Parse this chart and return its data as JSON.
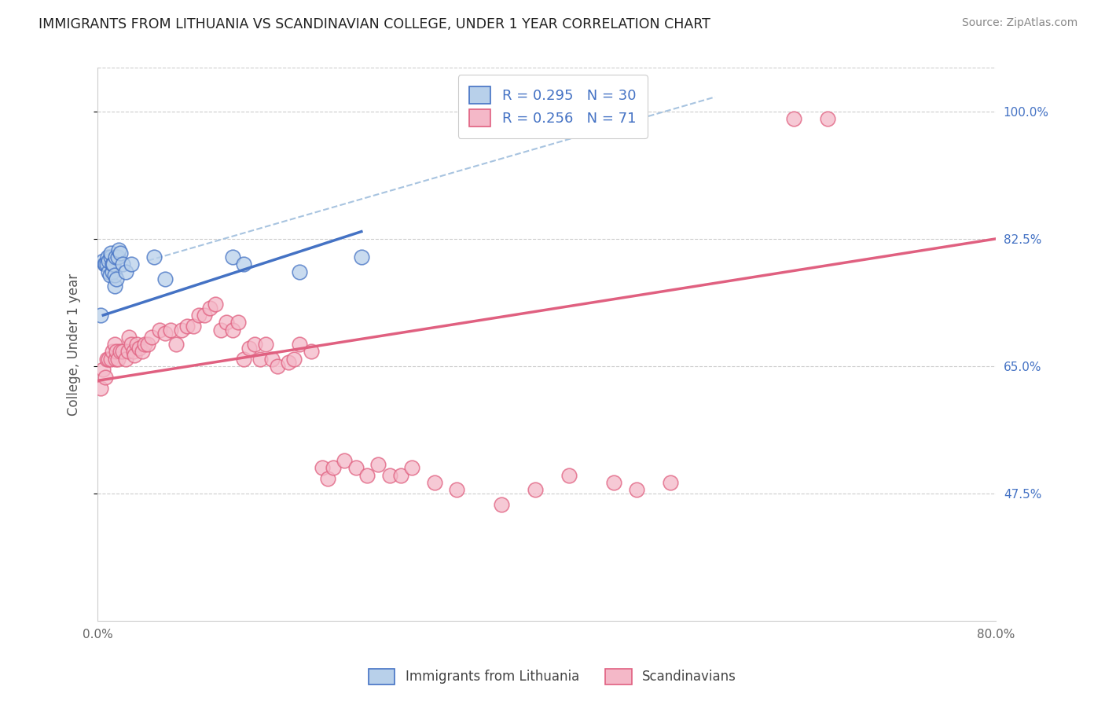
{
  "title": "IMMIGRANTS FROM LITHUANIA VS SCANDINAVIAN COLLEGE, UNDER 1 YEAR CORRELATION CHART",
  "source": "Source: ZipAtlas.com",
  "ylabel": "College, Under 1 year",
  "legend_labels": [
    "R = 0.295   N = 30",
    "R = 0.256   N = 71"
  ],
  "bottom_legend": [
    "Immigrants from Lithuania",
    "Scandinavians"
  ],
  "xlim": [
    0.0,
    0.8
  ],
  "ylim": [
    0.3,
    1.06
  ],
  "yticks": [
    0.475,
    0.65,
    0.825,
    1.0
  ],
  "ytick_labels": [
    "47.5%",
    "65.0%",
    "82.5%",
    "100.0%"
  ],
  "xticks": [
    0.0,
    0.2,
    0.4,
    0.6,
    0.8
  ],
  "xtick_labels": [
    "0.0%",
    "",
    "",
    "",
    "80.0%"
  ],
  "blue_fill": "#b8d0ea",
  "blue_edge": "#4472c4",
  "pink_fill": "#f4b8c8",
  "pink_edge": "#e06080",
  "blue_line_color": "#4472c4",
  "pink_line_color": "#e06080",
  "dash_color": "#a8c4e0",
  "title_color": "#222222",
  "tick_color_right": "#4472c4",
  "grid_color": "#cccccc",
  "blue_scatter_x": [
    0.003,
    0.005,
    0.006,
    0.007,
    0.008,
    0.009,
    0.01,
    0.01,
    0.011,
    0.012,
    0.012,
    0.013,
    0.013,
    0.014,
    0.015,
    0.015,
    0.016,
    0.017,
    0.018,
    0.019,
    0.02,
    0.022,
    0.025,
    0.03,
    0.05,
    0.06,
    0.12,
    0.13,
    0.18,
    0.235
  ],
  "blue_scatter_y": [
    0.72,
    0.795,
    0.79,
    0.79,
    0.79,
    0.8,
    0.78,
    0.795,
    0.775,
    0.8,
    0.805,
    0.78,
    0.79,
    0.79,
    0.76,
    0.775,
    0.8,
    0.77,
    0.8,
    0.81,
    0.805,
    0.79,
    0.78,
    0.79,
    0.8,
    0.77,
    0.8,
    0.79,
    0.78,
    0.8
  ],
  "pink_scatter_x": [
    0.003,
    0.005,
    0.007,
    0.008,
    0.01,
    0.012,
    0.013,
    0.015,
    0.016,
    0.017,
    0.018,
    0.02,
    0.022,
    0.025,
    0.027,
    0.028,
    0.03,
    0.032,
    0.033,
    0.035,
    0.037,
    0.04,
    0.042,
    0.045,
    0.048,
    0.055,
    0.06,
    0.065,
    0.07,
    0.075,
    0.08,
    0.085,
    0.09,
    0.095,
    0.1,
    0.105,
    0.11,
    0.115,
    0.12,
    0.125,
    0.13,
    0.135,
    0.14,
    0.145,
    0.15,
    0.155,
    0.16,
    0.17,
    0.175,
    0.18,
    0.19,
    0.2,
    0.205,
    0.21,
    0.22,
    0.23,
    0.24,
    0.25,
    0.26,
    0.27,
    0.28,
    0.3,
    0.32,
    0.36,
    0.39,
    0.42,
    0.46,
    0.48,
    0.51,
    0.62,
    0.65
  ],
  "pink_scatter_y": [
    0.62,
    0.645,
    0.635,
    0.66,
    0.66,
    0.66,
    0.67,
    0.68,
    0.66,
    0.67,
    0.66,
    0.67,
    0.67,
    0.66,
    0.67,
    0.69,
    0.68,
    0.67,
    0.665,
    0.68,
    0.675,
    0.67,
    0.68,
    0.68,
    0.69,
    0.7,
    0.695,
    0.7,
    0.68,
    0.7,
    0.705,
    0.705,
    0.72,
    0.72,
    0.73,
    0.735,
    0.7,
    0.71,
    0.7,
    0.71,
    0.66,
    0.675,
    0.68,
    0.66,
    0.68,
    0.66,
    0.65,
    0.655,
    0.66,
    0.68,
    0.67,
    0.51,
    0.495,
    0.51,
    0.52,
    0.51,
    0.5,
    0.515,
    0.5,
    0.5,
    0.51,
    0.49,
    0.48,
    0.46,
    0.48,
    0.5,
    0.49,
    0.48,
    0.49,
    0.99,
    0.99
  ],
  "blue_line_x": [
    0.005,
    0.235
  ],
  "blue_line_y": [
    0.72,
    0.835
  ],
  "pink_line_x": [
    0.0,
    0.8
  ],
  "pink_line_y": [
    0.63,
    0.825
  ],
  "dash_line_x": [
    0.045,
    0.55
  ],
  "dash_line_y": [
    0.795,
    1.02
  ]
}
